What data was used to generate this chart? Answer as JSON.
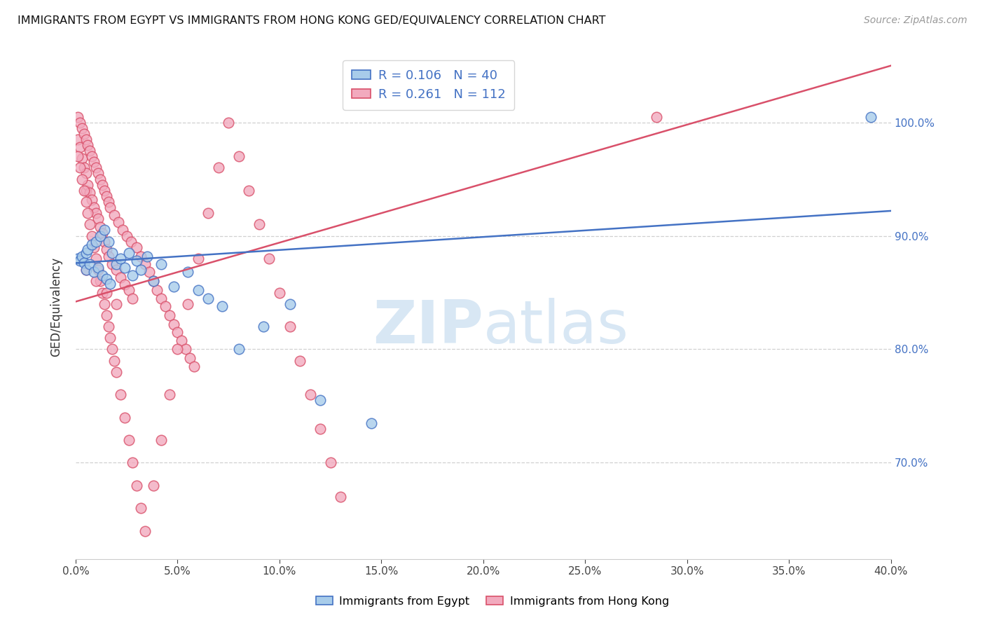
{
  "title": "IMMIGRANTS FROM EGYPT VS IMMIGRANTS FROM HONG KONG GED/EQUIVALENCY CORRELATION CHART",
  "source": "Source: ZipAtlas.com",
  "ylabel": "GED/Equivalency",
  "yticks": [
    "100.0%",
    "90.0%",
    "80.0%",
    "70.0%"
  ],
  "ytick_vals": [
    1.0,
    0.9,
    0.8,
    0.7
  ],
  "xmin": 0.0,
  "xmax": 0.4,
  "ymin": 0.615,
  "ymax": 1.06,
  "legend_R_egypt": "0.106",
  "legend_N_egypt": "40",
  "legend_R_hk": "0.261",
  "legend_N_hk": "112",
  "color_egypt": "#A8CCEA",
  "color_hk": "#F2AABE",
  "line_color_egypt": "#4472C4",
  "line_color_hk": "#D9506A",
  "watermark_zip": "ZIP",
  "watermark_atlas": "atlas",
  "egypt_x": [
    0.001,
    0.002,
    0.003,
    0.004,
    0.005,
    0.005,
    0.006,
    0.007,
    0.008,
    0.009,
    0.01,
    0.011,
    0.012,
    0.013,
    0.014,
    0.015,
    0.016,
    0.017,
    0.018,
    0.02,
    0.022,
    0.024,
    0.026,
    0.028,
    0.03,
    0.032,
    0.035,
    0.038,
    0.042,
    0.048,
    0.055,
    0.06,
    0.065,
    0.072,
    0.08,
    0.092,
    0.105,
    0.12,
    0.145,
    0.39
  ],
  "egypt_y": [
    0.88,
    0.878,
    0.882,
    0.876,
    0.885,
    0.87,
    0.888,
    0.875,
    0.892,
    0.868,
    0.895,
    0.872,
    0.9,
    0.865,
    0.905,
    0.862,
    0.895,
    0.858,
    0.885,
    0.875,
    0.88,
    0.872,
    0.885,
    0.865,
    0.878,
    0.87,
    0.882,
    0.86,
    0.875,
    0.855,
    0.868,
    0.852,
    0.845,
    0.838,
    0.8,
    0.82,
    0.84,
    0.755,
    0.735,
    1.005
  ],
  "hk_x": [
    0.001,
    0.001,
    0.002,
    0.002,
    0.003,
    0.003,
    0.004,
    0.004,
    0.005,
    0.005,
    0.005,
    0.006,
    0.006,
    0.007,
    0.007,
    0.008,
    0.008,
    0.009,
    0.009,
    0.01,
    0.01,
    0.011,
    0.011,
    0.012,
    0.012,
    0.013,
    0.013,
    0.014,
    0.014,
    0.015,
    0.015,
    0.016,
    0.016,
    0.017,
    0.018,
    0.019,
    0.02,
    0.021,
    0.022,
    0.023,
    0.024,
    0.025,
    0.026,
    0.027,
    0.028,
    0.03,
    0.032,
    0.034,
    0.036,
    0.038,
    0.04,
    0.042,
    0.044,
    0.046,
    0.048,
    0.05,
    0.052,
    0.054,
    0.056,
    0.058,
    0.001,
    0.002,
    0.003,
    0.004,
    0.005,
    0.006,
    0.007,
    0.008,
    0.009,
    0.01,
    0.011,
    0.012,
    0.013,
    0.014,
    0.015,
    0.016,
    0.017,
    0.018,
    0.019,
    0.02,
    0.022,
    0.024,
    0.026,
    0.028,
    0.03,
    0.032,
    0.034,
    0.038,
    0.042,
    0.046,
    0.05,
    0.055,
    0.06,
    0.065,
    0.07,
    0.075,
    0.08,
    0.085,
    0.09,
    0.095,
    0.1,
    0.105,
    0.11,
    0.115,
    0.12,
    0.125,
    0.13,
    0.005,
    0.01,
    0.015,
    0.02,
    0.285
  ],
  "hk_y": [
    1.005,
    0.985,
    1.0,
    0.978,
    0.995,
    0.968,
    0.99,
    0.96,
    0.985,
    0.955,
    0.94,
    0.98,
    0.945,
    0.975,
    0.938,
    0.97,
    0.932,
    0.965,
    0.925,
    0.96,
    0.92,
    0.955,
    0.915,
    0.95,
    0.908,
    0.945,
    0.902,
    0.94,
    0.895,
    0.935,
    0.888,
    0.93,
    0.882,
    0.925,
    0.875,
    0.918,
    0.87,
    0.912,
    0.863,
    0.905,
    0.857,
    0.9,
    0.852,
    0.895,
    0.845,
    0.89,
    0.882,
    0.875,
    0.868,
    0.86,
    0.852,
    0.845,
    0.838,
    0.83,
    0.822,
    0.815,
    0.808,
    0.8,
    0.792,
    0.785,
    0.97,
    0.96,
    0.95,
    0.94,
    0.93,
    0.92,
    0.91,
    0.9,
    0.89,
    0.88,
    0.87,
    0.86,
    0.85,
    0.84,
    0.83,
    0.82,
    0.81,
    0.8,
    0.79,
    0.78,
    0.76,
    0.74,
    0.72,
    0.7,
    0.68,
    0.66,
    0.64,
    0.68,
    0.72,
    0.76,
    0.8,
    0.84,
    0.88,
    0.92,
    0.96,
    1.0,
    0.97,
    0.94,
    0.91,
    0.88,
    0.85,
    0.82,
    0.79,
    0.76,
    0.73,
    0.7,
    0.67,
    0.87,
    0.86,
    0.85,
    0.84,
    1.005
  ]
}
